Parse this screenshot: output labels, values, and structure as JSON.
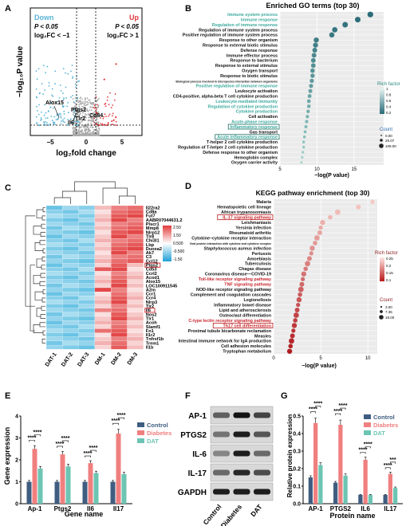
{
  "panels": {
    "A": {
      "label": "A",
      "legend_down": {
        "title": "Down",
        "p": "P < 0.05",
        "fc": "log₂FC < −1"
      },
      "legend_up": {
        "title": "Up",
        "p": "P < 0.05",
        "fc": "log₂FC > 1"
      },
      "xlabel": "log₂fold change",
      "ylabel": "−log₁₀P value",
      "xticks": [
        "−5",
        "0",
        "5"
      ],
      "genes": [
        "Alox15",
        "Ptgs2",
        "Il6",
        "Tlr2",
        "Cd84"
      ],
      "colors": {
        "down": "#5ab4d6",
        "up": "#e0393e",
        "ns": "#a9a9a9"
      }
    },
    "B": {
      "label": "B",
      "title": "Enriched GO terms (top 30)",
      "xlabel": "−log(P value)",
      "xticks": [
        "5",
        "10",
        "15"
      ],
      "legend": {
        "rich_title": "Rich factor",
        "rich_ticks": [
          "1",
          "0.8",
          "0.6",
          "0.4",
          "0.2"
        ],
        "count_title": "Count",
        "count_values": [
          "0.00",
          "25.07",
          "109.00"
        ]
      }
    },
    "C": {
      "label": "C",
      "genes": [
        "Il22ra2",
        "Cd8a",
        "Fut7",
        "AABR07044631.2",
        "Plscr1",
        "Mmp8",
        "Nlrp12",
        "Tlr8",
        "Chi3l1",
        "Lbp",
        "Duoxa2",
        "Ak7",
        "C3",
        "Ccl12",
        "Ptgs2",
        "Cd53",
        "Ccrl2",
        "Acod1",
        "Alox15",
        "LOC100911545",
        "A2m",
        "Ccr1",
        "Ccr4",
        "Nlrp3",
        "Tlr2",
        "Il6",
        "Nos2",
        "Tlr1",
        "Acoh",
        "Slamf1",
        "Fn1",
        "Il1r2",
        "Tnfrsf1b",
        "Trem1",
        "Il1b"
      ],
      "samples": [
        "DAT-1",
        "DAT-2",
        "DAT-3",
        "DM-1",
        "DM-2",
        "DM-3"
      ],
      "scale": [
        "2.50",
        "1.50",
        "0.500",
        "-0.500",
        "-1.50"
      ]
    },
    "D": {
      "label": "D",
      "title": "KEGG pathway enrichment (top 30)",
      "xlabel": "−log(P value)",
      "xticks": [
        "0",
        "5",
        "10"
      ],
      "legend": {
        "rich_title": "Rich factor",
        "rich_ticks": [
          "0.25",
          "0.2",
          "0.15",
          "0.1"
        ],
        "count_title": "Count",
        "count_values": [
          "3.00",
          "7.35",
          "18.00"
        ]
      }
    },
    "E": {
      "label": "E",
      "ylabel": "Gene expression",
      "xlabel": "Gene name",
      "yticks": [
        "0",
        "1",
        "2",
        "3",
        "4"
      ],
      "stars": "****"
    },
    "F": {
      "label": "F",
      "bands": [
        "AP-1",
        "PTGS2",
        "IL-6",
        "IL-17",
        "GAPDH"
      ],
      "lanes": [
        "Control",
        "Diabetes",
        "DAT"
      ]
    },
    "G": {
      "label": "G",
      "ylabel": "Relative protein expression",
      "xlabel": "Protein name",
      "yticks": [
        "0.0",
        "0.1",
        "0.2",
        "0.3",
        "0.4",
        "0.5"
      ],
      "stars": "****",
      "stars3": "***"
    }
  },
  "chart_data": [
    {
      "type": "scatter",
      "id": "A",
      "xlabel": "log₂fold change",
      "ylabel": "−log₁₀P value",
      "xlim": [
        -8,
        8
      ],
      "labeled_points": [
        {
          "name": "Alox15",
          "x": -5.8,
          "y": 2.3
        },
        {
          "name": "Ptgs2",
          "x": -3.7,
          "y": 1.6
        },
        {
          "name": "Il6",
          "x": -2.9,
          "y": 0.9
        },
        {
          "name": "Tlr2",
          "x": -1.7,
          "y": 0.95
        },
        {
          "name": "Cd84",
          "x": 1.0,
          "y": 0.7
        }
      ]
    },
    {
      "type": "scatter",
      "id": "B",
      "title": "Enriched GO terms (top 30)",
      "xlabel": "−log(P value)",
      "xlim": [
        5,
        19
      ],
      "categories": [
        "Immune system process",
        "Immune response",
        "Regulation of immune response",
        "Regulation of immune system process",
        "Positive regulation of immune system process",
        "Response to other organism",
        "Response to external biotic stimulus",
        "Defense response",
        "Immune effector process",
        "Response to bacterium",
        "Response to external stimulus",
        "Oxygen transport",
        "Response to biotic stimulus",
        "Biological process involved in interspecies interaction between organisms",
        "Positive regulation of immune response",
        "Leukocyte activation",
        "CD4-positive, alpha-beta T cell cytokine production",
        "Leukocyte-mediated immunity",
        "Regulation of cytokine production",
        "Cytokine production",
        "Cell activation",
        "Acute-phase response",
        "Inflammatory response",
        "Gas transport",
        "Acute inflammatory response",
        "T-helper 2 cell cytokine production",
        "Regulation of T-helper 2 cell cytokine production",
        "Defense response to other organism",
        "Hemoglobin complex",
        "Oxygen carrier activity"
      ],
      "values": [
        17.2,
        15.5,
        13.8,
        12.4,
        12.0,
        9.9,
        9.8,
        9.7,
        9.6,
        9.5,
        9.5,
        9.4,
        9.4,
        9.3,
        9.2,
        9.1,
        9.0,
        8.9,
        8.9,
        8.8,
        8.7,
        8.6,
        8.5,
        8.4,
        8.3,
        8.2,
        8.2,
        8.1,
        8.0,
        7.9
      ],
      "highlighted": [
        "Immune system process",
        "Immune response",
        "Regulation of immune response",
        "Positive regulation of immune response",
        "Leukocyte-mediated immunity",
        "Regulation of cytokine production",
        "Cytokine production",
        "Acute-phase response",
        "Inflammatory response",
        "Acute inflammatory response"
      ]
    },
    {
      "type": "heatmap",
      "id": "C",
      "columns": [
        "DAT-1",
        "DAT-2",
        "DAT-3",
        "DM-1",
        "DM-2",
        "DM-3"
      ],
      "range": [
        -1.5,
        2.5
      ]
    },
    {
      "type": "scatter",
      "id": "D",
      "title": "KEGG pathway enrichment (top 30)",
      "xlabel": "−log(P value)",
      "xlim": [
        0,
        11
      ],
      "categories": [
        "Malaria",
        "Hematopoietic cell lineage",
        "African trypanosomiasis",
        "IL-17 signaling pathway",
        "Leishmaniasis",
        "Yersinia infection",
        "Rheumatoid arthritis",
        "Cytokine–cytokine receptor interaction",
        "Viral protein interaction with cytokine and cytokine receptor",
        "Staphylococcus aureus infection",
        "Pertussis",
        "Amoebiasis",
        "Tuberculosis",
        "Chagas disease",
        "Coronavirus disease—COVID-19",
        "Toll-like receptor signaling pathway",
        "TNF signaling pathway",
        "NOD-like receptor signaling pathway",
        "Complement and coagulation cascades",
        "Legionellosis",
        "Inflammatory bowel disease",
        "Lipid and atherosclerosis",
        "Osteoclast differentiation",
        "C-type lectin receptor signaling pathway",
        "Th17 cell differentiation",
        "Proximal tubule bicarbonate reclamation",
        "Measles",
        "Intestinal immune network for IgA production",
        "Cell adhesion molecules",
        "Tryptophan metabolism"
      ],
      "values": [
        10.5,
        9.0,
        6.8,
        6.0,
        5.2,
        5.0,
        4.9,
        4.6,
        4.4,
        4.1,
        4.0,
        3.8,
        3.6,
        3.4,
        3.2,
        3.1,
        3.0,
        2.9,
        2.8,
        2.7,
        2.6,
        2.5,
        2.4,
        2.3,
        2.2,
        2.1,
        2.0,
        1.9,
        1.8,
        1.7
      ],
      "highlighted": [
        "IL-17 signaling pathway",
        "Toll-like receptor signaling pathway",
        "TNF signaling pathway",
        "C-type lectin receptor signaling pathway",
        "Th17 cell differentiation"
      ]
    },
    {
      "type": "bar",
      "id": "E",
      "categories": [
        "Ap-1",
        "Ptgs2",
        "Il6",
        "Il17"
      ],
      "ylabel": "Gene expression",
      "xlabel": "Gene name",
      "ylim": [
        0,
        4
      ],
      "series": [
        {
          "name": "Control",
          "values": [
            1.0,
            1.0,
            1.0,
            1.0
          ],
          "color": "#3f5d80"
        },
        {
          "name": "Diabetes",
          "values": [
            2.5,
            2.25,
            1.85,
            3.2
          ],
          "color": "#f07f7f"
        },
        {
          "name": "DAT",
          "values": [
            1.6,
            1.7,
            1.4,
            1.35
          ],
          "color": "#6cc5b3"
        }
      ]
    },
    {
      "type": "bar",
      "id": "G",
      "categories": [
        "AP-1",
        "PTGS2",
        "IL6",
        "IL17"
      ],
      "ylabel": "Relative protein expression",
      "xlabel": "Protein name",
      "ylim": [
        0,
        0.5
      ],
      "series": [
        {
          "name": "Control",
          "values": [
            0.15,
            0.12,
            0.05,
            0.05
          ],
          "color": "#3f5d80"
        },
        {
          "name": "Diabetes",
          "values": [
            0.46,
            0.45,
            0.25,
            0.17
          ],
          "color": "#f07f7f"
        },
        {
          "name": "DAT",
          "values": [
            0.22,
            0.16,
            0.05,
            0.09
          ],
          "color": "#6cc5b3"
        }
      ]
    }
  ]
}
